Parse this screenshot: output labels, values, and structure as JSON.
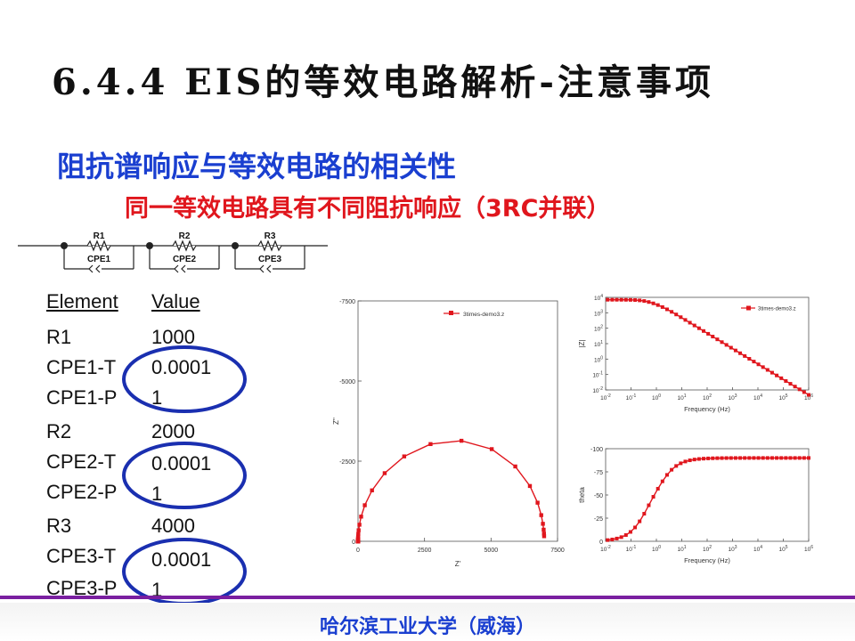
{
  "title": "6.4.4 EIS的等效电路解析-注意事项",
  "subtitle1": "阻抗谱响应与等效电路的相关性",
  "subtitle2": "同一等效电路具有不同阻抗响应（3RC并联）",
  "circuit": {
    "resistors": [
      "R1",
      "R2",
      "R3"
    ],
    "cpes": [
      "CPE1",
      "CPE2",
      "CPE3"
    ]
  },
  "table": {
    "header": {
      "element": "Element",
      "value": "Value"
    },
    "rows": [
      {
        "element": "R1",
        "value": "1000"
      },
      {
        "element": "CPE1-T",
        "value": "0.0001"
      },
      {
        "element": "CPE1-P",
        "value": "1"
      },
      {
        "element": "R2",
        "value": "2000"
      },
      {
        "element": "CPE2-T",
        "value": "0.0001"
      },
      {
        "element": "CPE2-P",
        "value": "1"
      },
      {
        "element": "R3",
        "value": "4000"
      },
      {
        "element": "CPE3-T",
        "value": "0.0001"
      },
      {
        "element": "CPE3-P",
        "value": "1"
      }
    ]
  },
  "colors": {
    "series": "#e0161d",
    "oval": "#1a2fb0",
    "blue_text": "#1a3fd0",
    "red_text": "#e0161d"
  },
  "chart_data": [
    {
      "type": "scatter",
      "title": "",
      "xlabel": "Z'",
      "ylabel": "Z''",
      "xlim": [
        0,
        7500
      ],
      "ylim": [
        0,
        -7500
      ],
      "xticks": [
        "0",
        "2500",
        "5000",
        "7500"
      ],
      "yticks": [
        "0",
        "-2500",
        "-5000",
        "-7500"
      ],
      "legend": "3times-demo3.z",
      "legend_position": "top-center",
      "model": {
        "R": [
          1000,
          2000,
          4000
        ],
        "T": [
          0.0001,
          0.0001,
          0.0001
        ],
        "P": [
          1,
          1,
          1
        ]
      },
      "series": [
        {
          "name": "3times-demo3.z",
          "color": "#e0161d"
        }
      ]
    },
    {
      "type": "line",
      "title": "",
      "xlabel": "Frequency (Hz)",
      "ylabel": "|Z|",
      "x_scale": "log",
      "y_scale": "log",
      "xticks": [
        "10-2",
        "10-1",
        "100",
        "101",
        "102",
        "103",
        "104",
        "105",
        "106"
      ],
      "yticks": [
        "10-2",
        "10-1",
        "100",
        "101",
        "102",
        "103",
        "104"
      ],
      "xlim_exp": [
        -2,
        6
      ],
      "ylim_exp": [
        -2,
        4
      ],
      "legend": "3times-demo3.z",
      "legend_position": "top-right",
      "series": [
        {
          "name": "3times-demo3.z",
          "color": "#e0161d"
        }
      ]
    },
    {
      "type": "line",
      "title": "",
      "xlabel": "Frequency (Hz)",
      "ylabel": "theta",
      "x_scale": "log",
      "xticks": [
        "10-2",
        "10-1",
        "100",
        "101",
        "102",
        "103",
        "104",
        "105",
        "106"
      ],
      "yticks": [
        "0",
        "-25",
        "-50",
        "-75",
        "-100"
      ],
      "xlim_exp": [
        -2,
        6
      ],
      "ylim": [
        0,
        -100
      ],
      "series": [
        {
          "name": "3times-demo3.z",
          "color": "#e0161d"
        }
      ]
    }
  ],
  "footer": "哈尔滨工业大学（威海）"
}
